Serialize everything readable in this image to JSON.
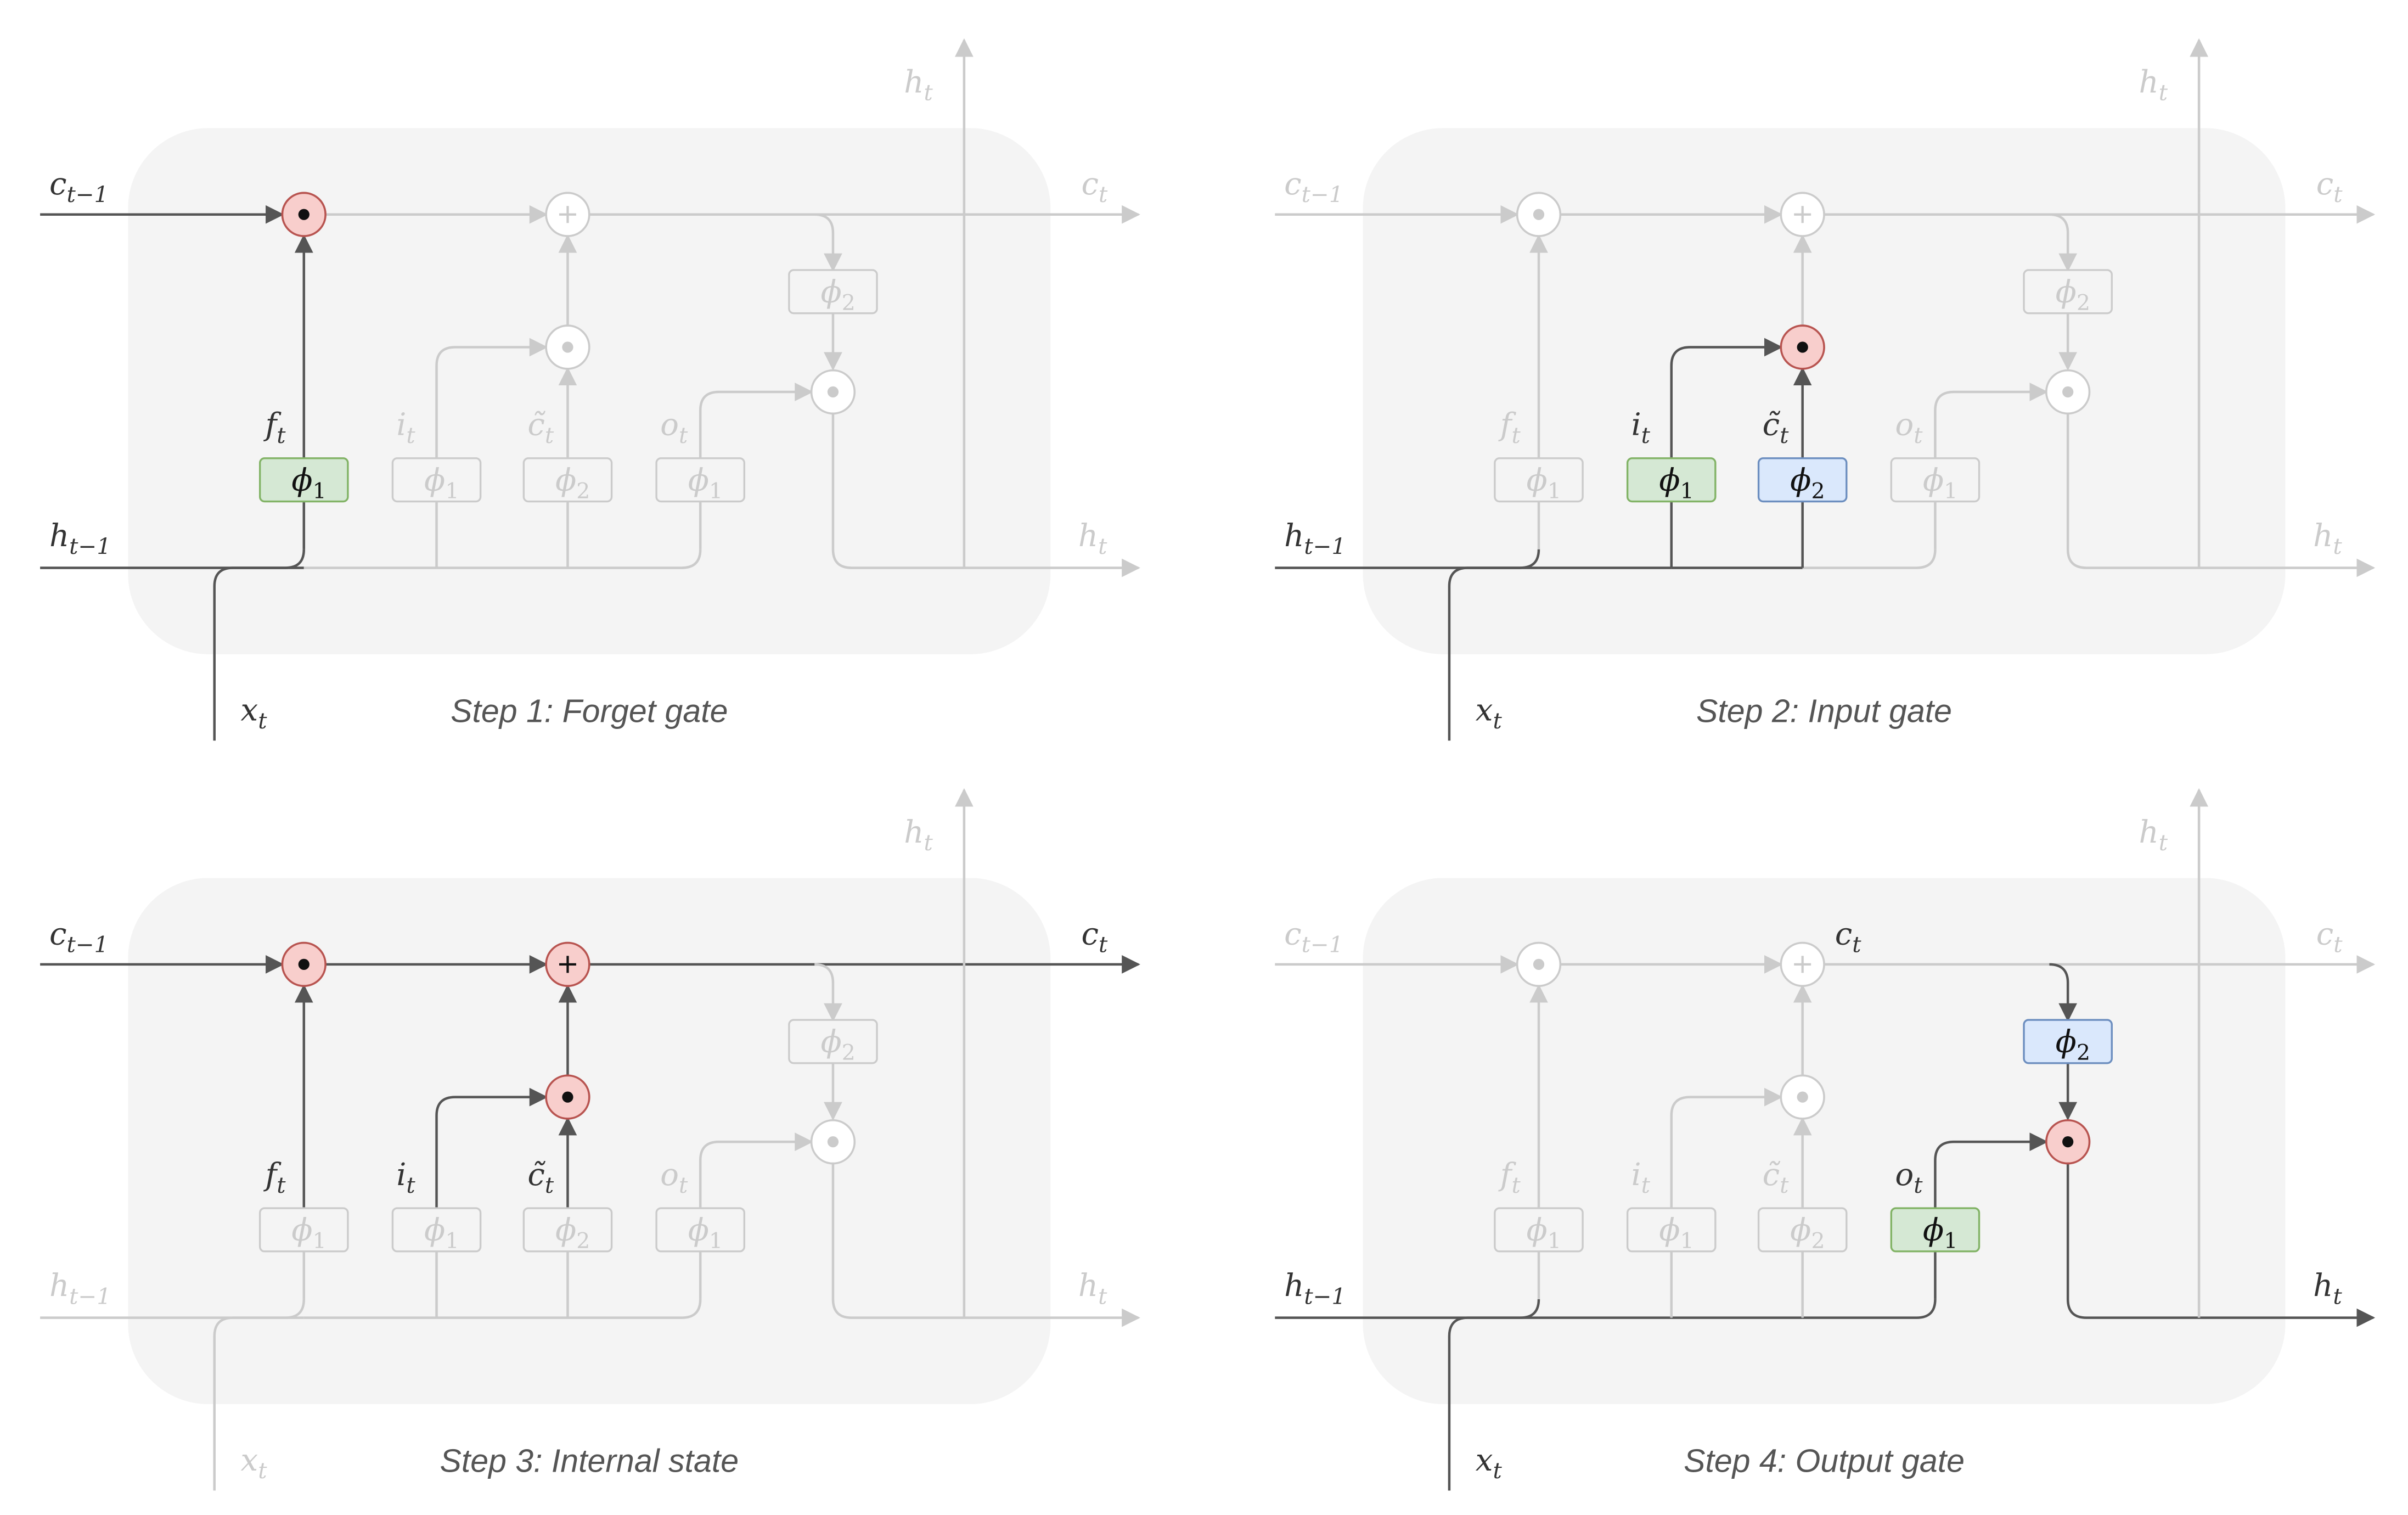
{
  "labels": {
    "c_prev": "c",
    "c_prev_sub": "t−1",
    "h_prev": "h",
    "h_prev_sub": "t−1",
    "x": "x",
    "x_sub": "t",
    "c_out": "c",
    "c_out_sub": "t",
    "h_out": "h",
    "h_out_sub": "t",
    "h_top": "h",
    "h_top_sub": "t",
    "f": "f",
    "f_sub": "t",
    "i": "i",
    "i_sub": "t",
    "ctilde": "c̃",
    "ctilde_sub": "t",
    "o": "o",
    "o_sub": "t",
    "c_mid": "c",
    "c_mid_sub": "t",
    "phi": "ϕ",
    "sub1": "1",
    "sub2": "2",
    "odot": "⊙",
    "oplus": "+"
  },
  "panels": [
    {
      "caption": "Step 1: Forget gate"
    },
    {
      "caption": "Step 2: Input gate"
    },
    {
      "caption": "Step 3: Internal state"
    },
    {
      "caption": "Step 4: Output gate"
    }
  ],
  "colors": {
    "dark": "#555555",
    "faded": "#cbcbcb",
    "cell_bg": "#f4f4f4",
    "green_fill": "#d5e8d4",
    "green_stroke": "#82b366",
    "blue_fill": "#dae8fc",
    "blue_stroke": "#6c8ebf",
    "red_fill": "#f8cecc",
    "red_stroke": "#b85450"
  }
}
